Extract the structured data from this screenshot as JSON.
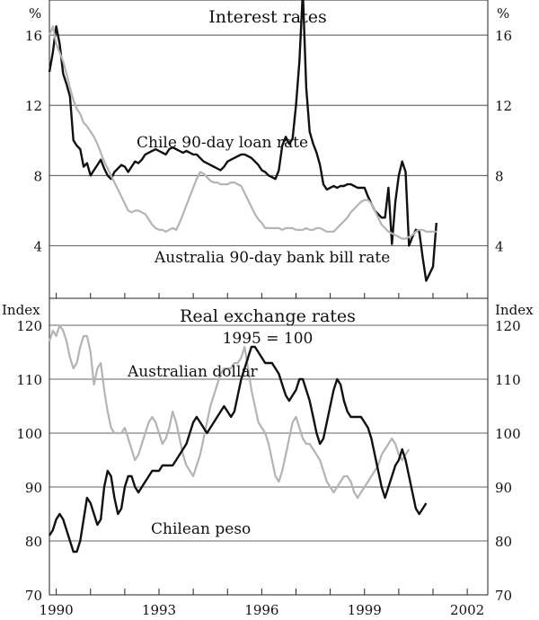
{
  "chart_data": [
    {
      "type": "line",
      "title": "Interest rates",
      "unit": "%",
      "ylim": [
        1,
        18
      ],
      "yticks": [
        "4",
        "8",
        "12",
        "16"
      ],
      "x_start": 1989.8,
      "x_end": 2002.6,
      "x_step": 0.1,
      "grid": true,
      "series": [
        {
          "name": "Chile 90-day loan rate",
          "color": "#111111",
          "values": [
            13.9,
            15.0,
            16.5,
            15.5,
            13.8,
            13.2,
            12.5,
            10.0,
            9.7,
            9.5,
            8.5,
            8.7,
            8.0,
            8.3,
            8.6,
            8.9,
            8.4,
            8.0,
            7.8,
            8.2,
            8.4,
            8.6,
            8.5,
            8.2,
            8.5,
            8.8,
            8.7,
            8.9,
            9.2,
            9.3,
            9.4,
            9.5,
            9.4,
            9.3,
            9.2,
            9.5,
            9.6,
            9.5,
            9.4,
            9.3,
            9.4,
            9.3,
            9.2,
            9.2,
            9.0,
            8.8,
            8.7,
            8.6,
            8.5,
            8.4,
            8.3,
            8.5,
            8.8,
            8.9,
            9.0,
            9.1,
            9.2,
            9.2,
            9.1,
            9.0,
            8.8,
            8.6,
            8.3,
            8.2,
            8.0,
            7.9,
            7.8,
            8.3,
            9.7,
            10.2,
            9.8,
            10.1,
            12.0,
            14.5,
            18.5,
            13.0,
            10.5,
            9.8,
            9.3,
            8.6,
            7.5,
            7.2,
            7.3,
            7.4,
            7.3,
            7.4,
            7.4,
            7.5,
            7.5,
            7.4,
            7.3,
            7.3,
            7.3,
            6.8,
            6.4,
            6.0,
            5.8,
            5.6,
            5.6,
            7.3,
            4.1,
            6.5,
            8.0,
            8.8,
            8.2,
            4.0,
            4.5,
            4.9,
            4.8,
            3.3,
            2.0,
            2.4,
            2.8,
            5.3
          ]
        },
        {
          "name": "Australia 90-day bank bill rate",
          "color": "#b4b4b4",
          "values": [
            16.0,
            16.5,
            15.5,
            15.0,
            14.5,
            13.8,
            13.0,
            12.3,
            11.8,
            11.5,
            11.0,
            10.8,
            10.5,
            10.2,
            9.8,
            9.3,
            8.8,
            8.4,
            8.0,
            7.6,
            7.2,
            6.8,
            6.4,
            6.0,
            5.9,
            6.0,
            6.0,
            5.9,
            5.8,
            5.5,
            5.2,
            5.0,
            4.9,
            4.9,
            4.8,
            4.9,
            5.0,
            4.9,
            5.3,
            5.8,
            6.3,
            6.8,
            7.3,
            7.8,
            8.2,
            8.1,
            7.9,
            7.7,
            7.6,
            7.6,
            7.5,
            7.5,
            7.5,
            7.6,
            7.6,
            7.5,
            7.4,
            7.0,
            6.6,
            6.2,
            5.8,
            5.5,
            5.3,
            5.0,
            5.0,
            5.0,
            5.0,
            5.0,
            4.9,
            5.0,
            5.0,
            5.0,
            4.9,
            4.9,
            4.9,
            5.0,
            4.9,
            4.9,
            5.0,
            5.0,
            4.9,
            4.8,
            4.8,
            4.8,
            5.0,
            5.2,
            5.4,
            5.6,
            5.9,
            6.1,
            6.3,
            6.5,
            6.6,
            6.6,
            6.4,
            6.0,
            5.6,
            5.2,
            5.0,
            4.8,
            4.7,
            4.6,
            4.5,
            4.4,
            4.4,
            4.5,
            4.6,
            4.8,
            4.9,
            4.9,
            4.8,
            4.8,
            4.8,
            4.8
          ]
        }
      ]
    },
    {
      "type": "line",
      "title": "Real exchange rates",
      "subtitle": "1995 = 100",
      "unit": "Index",
      "ylim": [
        70,
        125
      ],
      "yticks": [
        "70",
        "80",
        "90",
        "100",
        "110",
        "120"
      ],
      "x_start": 1989.8,
      "x_end": 2002.6,
      "x_step": 0.1,
      "xticks": [
        "1990",
        "1993",
        "1996",
        "1999",
        "2002"
      ],
      "xtick_values": [
        1990,
        1993,
        1996,
        1999,
        2002
      ],
      "grid": true,
      "series": [
        {
          "name": "Australian dollar",
          "color": "#b4b4b4",
          "values": [
            117,
            119,
            118,
            120,
            119,
            117,
            114,
            112,
            113,
            116,
            118,
            118,
            115,
            109,
            112,
            113,
            108,
            104,
            101,
            100,
            100,
            100,
            101,
            99,
            97,
            95,
            96,
            98,
            100,
            102,
            103,
            102,
            100,
            98,
            99,
            101,
            104,
            102,
            99,
            96,
            94,
            93,
            92,
            94,
            96,
            99,
            102,
            105,
            107,
            109,
            111,
            112,
            112,
            112,
            113,
            113,
            114,
            116,
            112,
            108,
            105,
            102,
            101,
            100,
            98,
            95,
            92,
            91,
            93,
            96,
            99,
            102,
            103,
            101,
            99,
            98,
            98,
            97,
            96,
            95,
            93,
            91,
            90,
            89,
            90,
            91,
            92,
            92,
            91,
            89,
            88,
            89,
            90,
            91,
            92,
            93,
            94,
            96,
            97,
            98,
            99,
            98,
            96,
            95,
            96,
            97
          ]
        },
        {
          "name": "Chilean peso",
          "color": "#111111",
          "values": [
            81,
            82,
            84,
            85,
            84,
            82,
            80,
            78,
            78,
            80,
            84,
            88,
            87,
            85,
            83,
            84,
            90,
            93,
            92,
            88,
            85,
            86,
            90,
            92,
            92,
            90,
            89,
            90,
            91,
            92,
            93,
            93,
            93,
            94,
            94,
            94,
            94,
            95,
            96,
            97,
            98,
            100,
            102,
            103,
            102,
            101,
            100,
            101,
            102,
            103,
            104,
            105,
            104,
            103,
            104,
            107,
            110,
            112,
            114,
            116,
            116,
            115,
            114,
            113,
            113,
            113,
            112,
            111,
            109,
            107,
            106,
            107,
            108,
            110,
            110,
            108,
            106,
            103,
            100,
            98,
            99,
            102,
            105,
            108,
            110,
            109,
            106,
            104,
            103,
            103,
            103,
            103,
            102,
            101,
            99,
            96,
            93,
            90,
            88,
            90,
            92,
            94,
            95,
            97,
            95,
            92,
            89,
            86,
            85,
            86,
            87
          ]
        }
      ]
    }
  ],
  "labels": {
    "unit_percent": "%",
    "unit_index": "Index",
    "title_top": "Interest rates",
    "title_bottom": "Real exchange rates",
    "subtitle_bottom": "1995 = 100",
    "chile_rate": "Chile 90-day loan rate",
    "aus_rate": "Australia 90-day bank bill rate",
    "aud": "Australian dollar",
    "peso": "Chilean peso"
  }
}
